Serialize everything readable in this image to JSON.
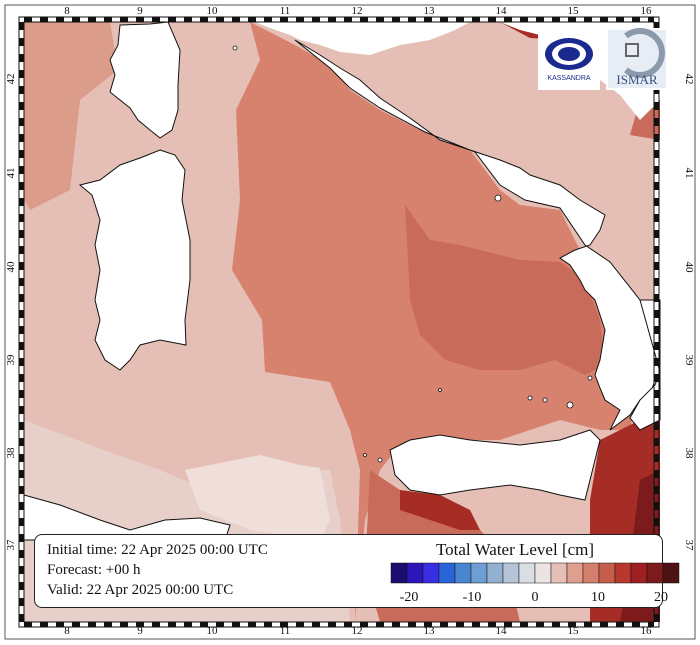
{
  "map": {
    "lon_ticks": [
      "8",
      "9",
      "10",
      "11",
      "12",
      "13",
      "14",
      "15",
      "16"
    ],
    "lat_ticks": [
      "37",
      "38",
      "39",
      "40",
      "41",
      "42"
    ],
    "colors": {
      "land": "#ffffff",
      "coast": "#111111",
      "level_light": "#e5bfb6",
      "level_mid": "#dc9c8a",
      "level_upper": "#d7826f",
      "level_high": "#c86b5a",
      "level_very_high": "#a62d25",
      "level_max": "#7c1a1c",
      "lightest": "#efdeda"
    }
  },
  "info": {
    "initial_time": "Initial time: 22 Apr 2025 00:00 UTC",
    "forecast": "Forecast: +00 h",
    "valid": "Valid: 22 Apr 2025 00:00 UTC"
  },
  "legend": {
    "title": "Total Water Level [cm]",
    "tick_labels": [
      "-20",
      "-10",
      "0",
      "10",
      "20"
    ],
    "colors": [
      "#1a0d6e",
      "#2c16b8",
      "#3a2ee3",
      "#2a64d9",
      "#4a86d0",
      "#6f9ed3",
      "#92b0d0",
      "#b4c3d6",
      "#d9dde4",
      "#ece4e2",
      "#e6bfb6",
      "#df9f8e",
      "#d47f6c",
      "#c65e4c",
      "#b8382d",
      "#a01f22",
      "#7c1a1c",
      "#4e1214"
    ]
  },
  "logos": {
    "left": "KASSANDRA",
    "right": "ISMAR"
  }
}
